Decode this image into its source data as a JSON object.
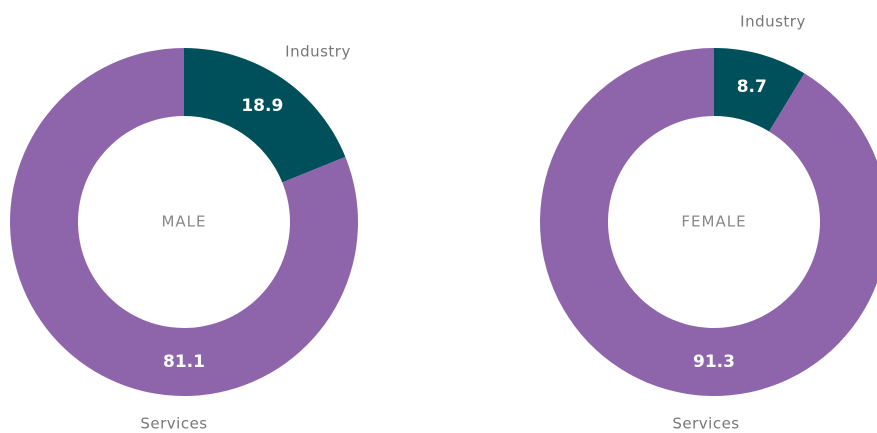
{
  "chart_data": [
    {
      "type": "donut",
      "center_label": "MALE",
      "categories": [
        "Industry",
        "Services"
      ],
      "values": [
        18.9,
        81.1
      ],
      "colors": [
        "#00505c",
        "#8e64ab"
      ]
    },
    {
      "type": "donut",
      "center_label": "FEMALE",
      "categories": [
        "Industry",
        "Services"
      ],
      "values": [
        8.7,
        91.3
      ],
      "colors": [
        "#00505c",
        "#8e64ab"
      ]
    }
  ]
}
